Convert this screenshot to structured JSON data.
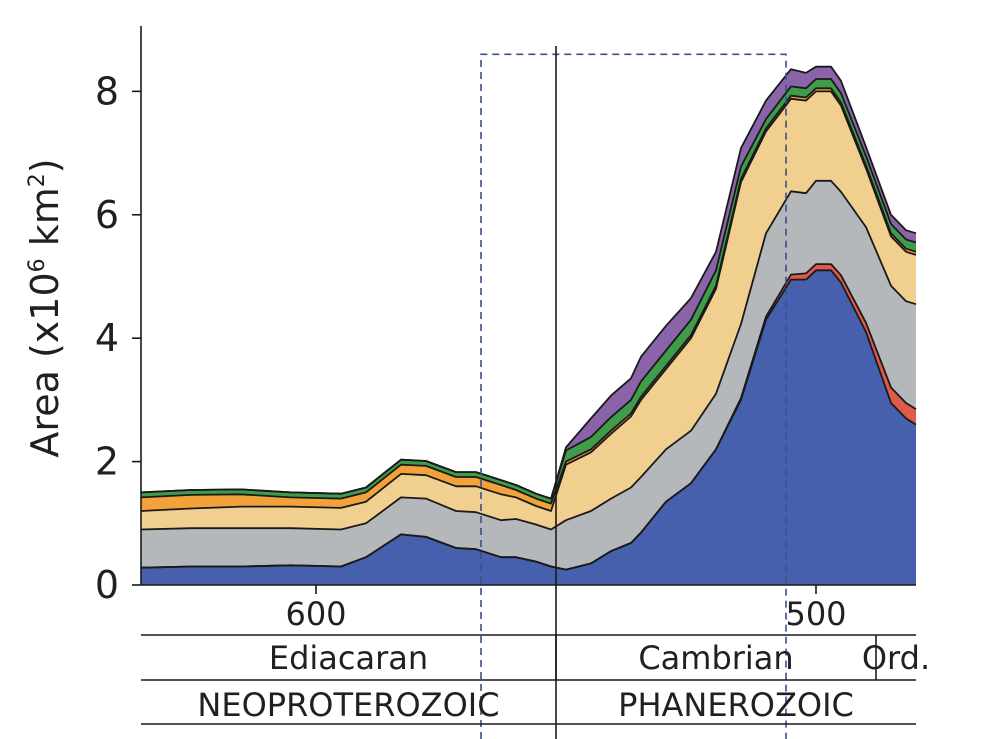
{
  "chart_data": {
    "type": "area",
    "ylabel_main": "Area (x10",
    "ylabel_exp1": "6",
    "ylabel_mid": " km",
    "ylabel_exp2": "2",
    "ylabel_end": ")",
    "ylim": [
      0,
      8.8
    ],
    "xlim": [
      635,
      480
    ],
    "y_ticks": [
      0,
      2,
      4,
      6,
      8
    ],
    "x_ticks": [
      600,
      500
    ],
    "x": [
      635,
      625,
      615,
      605,
      595,
      590,
      583,
      578,
      572,
      568,
      563,
      560,
      556,
      553,
      550,
      545,
      541,
      537,
      535,
      530,
      525,
      520,
      515,
      510,
      505,
      502,
      500,
      497,
      495,
      490,
      485,
      482,
      480
    ],
    "series": [
      {
        "color": "#4660ad",
        "values": [
          0.28,
          0.3,
          0.3,
          0.32,
          0.3,
          0.45,
          0.82,
          0.78,
          0.6,
          0.58,
          0.45,
          0.45,
          0.38,
          0.3,
          0.25,
          0.35,
          0.55,
          0.68,
          0.85,
          1.35,
          1.65,
          2.2,
          3.0,
          4.3,
          4.95,
          4.95,
          5.1,
          5.1,
          4.9,
          4.1,
          2.95,
          2.7,
          2.6
        ]
      },
      {
        "color": "#e05a4a",
        "values": [
          0.0,
          0.0,
          0.0,
          0.0,
          0.0,
          0.0,
          0.0,
          0.0,
          0.0,
          0.0,
          0.0,
          0.0,
          0.0,
          0.0,
          0.0,
          0.0,
          0.0,
          0.0,
          0.0,
          0.0,
          0.0,
          0.0,
          0.03,
          0.05,
          0.08,
          0.1,
          0.1,
          0.1,
          0.12,
          0.15,
          0.25,
          0.25,
          0.25
        ]
      },
      {
        "color": "#b5b8ba",
        "values": [
          0.62,
          0.62,
          0.62,
          0.6,
          0.6,
          0.55,
          0.6,
          0.62,
          0.6,
          0.6,
          0.6,
          0.62,
          0.6,
          0.6,
          0.8,
          0.85,
          0.85,
          0.9,
          0.9,
          0.85,
          0.85,
          0.9,
          1.2,
          1.35,
          1.35,
          1.3,
          1.35,
          1.35,
          1.35,
          1.55,
          1.65,
          1.65,
          1.7
        ]
      },
      {
        "color": "#f1cf8f",
        "values": [
          0.3,
          0.32,
          0.35,
          0.35,
          0.35,
          0.35,
          0.38,
          0.38,
          0.4,
          0.42,
          0.42,
          0.35,
          0.3,
          0.3,
          0.9,
          0.95,
          1.05,
          1.15,
          1.25,
          1.3,
          1.5,
          1.7,
          2.3,
          1.65,
          1.5,
          1.5,
          1.45,
          1.45,
          1.4,
          0.95,
          0.8,
          0.8,
          0.8
        ]
      },
      {
        "color": "#f2a13b",
        "values": [
          0.22,
          0.22,
          0.2,
          0.15,
          0.15,
          0.15,
          0.15,
          0.15,
          0.15,
          0.15,
          0.15,
          0.12,
          0.12,
          0.12,
          0.05,
          0.05,
          0.05,
          0.05,
          0.05,
          0.05,
          0.05,
          0.05,
          0.05,
          0.05,
          0.05,
          0.05,
          0.05,
          0.05,
          0.05,
          0.05,
          0.05,
          0.05,
          0.05
        ]
      },
      {
        "color": "#3f9d4a",
        "values": [
          0.08,
          0.08,
          0.08,
          0.08,
          0.08,
          0.08,
          0.08,
          0.08,
          0.08,
          0.08,
          0.08,
          0.08,
          0.08,
          0.08,
          0.18,
          0.2,
          0.22,
          0.22,
          0.25,
          0.25,
          0.25,
          0.25,
          0.2,
          0.15,
          0.15,
          0.15,
          0.15,
          0.15,
          0.15,
          0.15,
          0.15,
          0.15,
          0.15
        ]
      },
      {
        "color": "#8a63a8",
        "values": [
          0.0,
          0.0,
          0.0,
          0.0,
          0.0,
          0.0,
          0.0,
          0.0,
          0.0,
          0.0,
          0.0,
          0.0,
          0.0,
          0.0,
          0.05,
          0.3,
          0.35,
          0.35,
          0.4,
          0.4,
          0.35,
          0.3,
          0.3,
          0.3,
          0.28,
          0.25,
          0.2,
          0.2,
          0.2,
          0.15,
          0.15,
          0.15,
          0.15
        ]
      }
    ],
    "boundary_line_x": 552,
    "dashed_box_x": [
      567,
      506
    ],
    "dashed_box_ytop": 8.6,
    "periods": [
      {
        "label": "Ediacaran",
        "from": 635,
        "to": 552
      },
      {
        "label": "Cambrian",
        "from": 552,
        "to": 488
      },
      {
        "label": "Ord.",
        "from": 488,
        "to": 480
      }
    ],
    "eras": [
      {
        "label": "NEOPROTEROZOIC",
        "from": 635,
        "to": 552
      },
      {
        "label": "PHANEROZOIC",
        "from": 552,
        "to": 480
      }
    ]
  }
}
